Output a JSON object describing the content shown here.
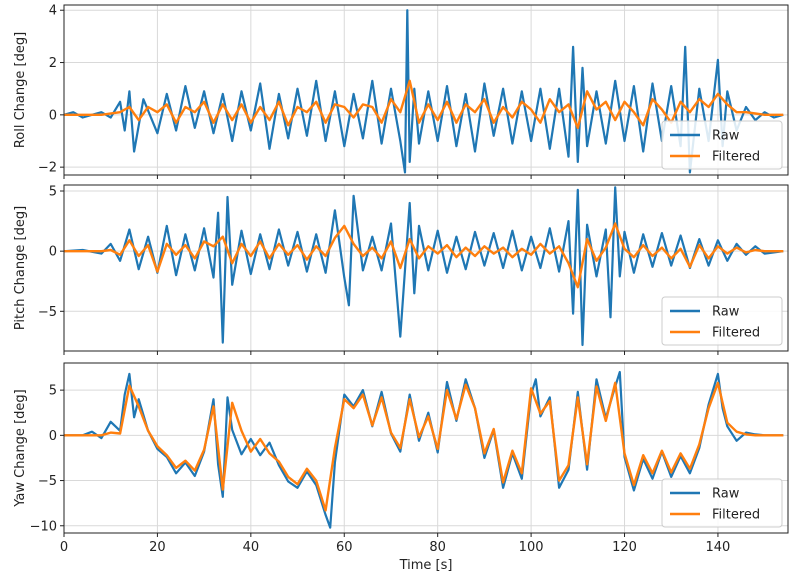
{
  "figure_colors": {
    "raw": "#1f77b4",
    "filtered": "#ff7f0e",
    "grid": "#d9d9d9",
    "frame": "#222222"
  },
  "chart_data": [
    {
      "type": "line",
      "ylabel": "Roll Change [deg]",
      "xlabel": "",
      "xlim": [
        0,
        155
      ],
      "ylim": [
        -2.3,
        4.2
      ],
      "yticks": [
        -2,
        0,
        2,
        4
      ],
      "ytick_labels": [
        "−2",
        "0",
        "2",
        "4"
      ],
      "xticks": [
        0,
        20,
        40,
        60,
        80,
        100,
        120,
        140
      ],
      "grid": true,
      "legend": {
        "position": "bottom-right",
        "entries": [
          "Raw",
          "Filtered"
        ]
      },
      "series": [
        {
          "name": "Raw",
          "color": "#1f77b4",
          "x": [
            0,
            2,
            4,
            6,
            8,
            10,
            12,
            13,
            14,
            15,
            17,
            20,
            22,
            24,
            26,
            28,
            30,
            32,
            34,
            36,
            38,
            40,
            42,
            44,
            46,
            48,
            50,
            52,
            54,
            56,
            58,
            60,
            62,
            64,
            66,
            68,
            70,
            72,
            73,
            73.5,
            74,
            75,
            76,
            78,
            80,
            82,
            84,
            86,
            88,
            90,
            92,
            94,
            96,
            98,
            100,
            102,
            104,
            106,
            108,
            109,
            110,
            111,
            112,
            114,
            116,
            118,
            120,
            122,
            124,
            126,
            128,
            130,
            132,
            133,
            134,
            136,
            138,
            140,
            141,
            142,
            144,
            146,
            148,
            150,
            152,
            154
          ],
          "y": [
            0,
            0.1,
            -0.1,
            0,
            0.1,
            -0.1,
            0.5,
            -0.6,
            0.9,
            -1.4,
            0.6,
            -0.7,
            0.8,
            -0.6,
            1.1,
            -0.5,
            0.9,
            -0.7,
            0.8,
            -1.0,
            0.9,
            -0.6,
            1.2,
            -1.3,
            0.8,
            -0.9,
            1.0,
            -0.8,
            1.3,
            -1.0,
            0.9,
            -1.2,
            0.8,
            -0.9,
            1.3,
            -1.1,
            1.0,
            -1.0,
            -2.2,
            4.0,
            -1.8,
            1.0,
            -1.1,
            0.9,
            -1.0,
            1.1,
            -1.2,
            0.8,
            -1.4,
            1.2,
            -0.8,
            1.0,
            -1.1,
            0.9,
            -1.0,
            1.0,
            -1.3,
            1.0,
            -1.6,
            2.6,
            -1.8,
            1.8,
            -1.2,
            0.9,
            -1.1,
            1.3,
            -1.0,
            1.1,
            -1.4,
            1.2,
            -1.0,
            1.1,
            -1.2,
            2.6,
            -2.2,
            1.0,
            -1.0,
            2.1,
            -1.2,
            0.9,
            -0.6,
            0.3,
            -0.2,
            0.1,
            -0.1,
            0
          ]
        },
        {
          "name": "Filtered",
          "color": "#ff7f0e",
          "x": [
            0,
            4,
            8,
            12,
            14,
            16,
            18,
            20,
            22,
            24,
            26,
            28,
            30,
            32,
            34,
            36,
            38,
            40,
            42,
            44,
            46,
            48,
            50,
            52,
            54,
            56,
            58,
            60,
            62,
            64,
            66,
            68,
            70,
            72,
            74,
            76,
            78,
            80,
            82,
            84,
            86,
            88,
            90,
            92,
            94,
            96,
            98,
            100,
            102,
            104,
            106,
            108,
            110,
            112,
            114,
            116,
            118,
            120,
            122,
            124,
            126,
            128,
            130,
            132,
            134,
            136,
            138,
            140,
            142,
            144,
            146,
            148,
            150,
            154
          ],
          "y": [
            0,
            0,
            0,
            0.1,
            0.3,
            -0.2,
            0.3,
            0.1,
            0.4,
            -0.3,
            0.3,
            0.1,
            0.5,
            -0.3,
            0.4,
            -0.2,
            0.4,
            -0.3,
            0.3,
            -0.2,
            0.5,
            -0.4,
            0.3,
            0.1,
            0.5,
            -0.3,
            0.4,
            0.3,
            -0.1,
            0.4,
            0.3,
            -0.3,
            0.6,
            0.1,
            1.3,
            -0.3,
            0.4,
            -0.2,
            0.5,
            -0.3,
            0.4,
            0.1,
            0.6,
            -0.3,
            0.3,
            -0.1,
            0.5,
            0.2,
            -0.3,
            0.6,
            0.1,
            0.4,
            -0.5,
            0.9,
            0.2,
            0.5,
            -0.2,
            0.5,
            0.1,
            -0.4,
            0.6,
            0.2,
            -0.3,
            0.5,
            0.1,
            0.6,
            0.3,
            0.8,
            0.4,
            0.1,
            0.1,
            0.05,
            0,
            0
          ]
        }
      ]
    },
    {
      "type": "line",
      "ylabel": "Pitch Change [deg]",
      "xlabel": "",
      "xlim": [
        0,
        155
      ],
      "ylim": [
        -8.3,
        5.5
      ],
      "yticks": [
        -5,
        0,
        5
      ],
      "ytick_labels": [
        "−5",
        "0",
        "5"
      ],
      "xticks": [
        0,
        20,
        40,
        60,
        80,
        100,
        120,
        140
      ],
      "grid": true,
      "legend": {
        "position": "bottom-right",
        "entries": [
          "Raw",
          "Filtered"
        ]
      },
      "series": [
        {
          "name": "Raw",
          "color": "#1f77b4",
          "x": [
            0,
            4,
            8,
            10,
            12,
            14,
            16,
            18,
            20,
            22,
            24,
            26,
            28,
            30,
            32,
            33,
            34,
            35,
            36,
            38,
            40,
            42,
            44,
            46,
            48,
            50,
            52,
            54,
            56,
            58,
            60,
            61,
            62,
            64,
            66,
            68,
            70,
            72,
            74,
            75,
            76,
            78,
            80,
            82,
            84,
            86,
            88,
            90,
            92,
            94,
            96,
            98,
            100,
            102,
            104,
            106,
            108,
            109,
            110,
            111,
            112,
            114,
            116,
            117,
            118,
            119,
            120,
            122,
            124,
            126,
            128,
            130,
            132,
            134,
            136,
            138,
            140,
            142,
            144,
            146,
            148,
            150,
            154
          ],
          "y": [
            0,
            0.1,
            -0.2,
            0.6,
            -0.8,
            1.8,
            -1.5,
            1.2,
            -1.8,
            2.1,
            -2.0,
            1.4,
            -1.6,
            1.9,
            -2.2,
            3.2,
            -7.6,
            4.5,
            -2.8,
            1.7,
            -1.9,
            1.4,
            -1.5,
            1.8,
            -1.2,
            1.6,
            -1.7,
            1.4,
            -1.8,
            3.4,
            -2.2,
            -4.5,
            4.6,
            -1.6,
            1.2,
            -1.6,
            2.3,
            -7.1,
            4.0,
            -3.5,
            2.1,
            -1.6,
            1.7,
            -1.8,
            1.2,
            -1.5,
            1.6,
            -1.2,
            1.5,
            -1.4,
            1.7,
            -1.6,
            1.2,
            -1.4,
            1.9,
            -1.7,
            2.5,
            -5.2,
            5.1,
            -7.8,
            2.2,
            -2.1,
            1.8,
            -5.5,
            5.3,
            -2.1,
            1.6,
            -1.8,
            1.4,
            -1.3,
            1.5,
            -1.2,
            1.3,
            -1.4,
            1.0,
            -1.2,
            0.9,
            -0.8,
            0.6,
            -0.3,
            0.4,
            -0.2,
            0
          ]
        },
        {
          "name": "Filtered",
          "color": "#ff7f0e",
          "x": [
            0,
            4,
            8,
            10,
            12,
            14,
            16,
            18,
            20,
            22,
            24,
            26,
            28,
            30,
            32,
            34,
            36,
            38,
            40,
            42,
            44,
            46,
            48,
            50,
            52,
            54,
            56,
            58,
            60,
            62,
            64,
            66,
            68,
            70,
            72,
            74,
            76,
            78,
            80,
            82,
            84,
            86,
            88,
            90,
            92,
            94,
            96,
            98,
            100,
            102,
            104,
            106,
            108,
            110,
            112,
            114,
            116,
            118,
            120,
            122,
            124,
            126,
            128,
            130,
            132,
            134,
            136,
            138,
            140,
            142,
            144,
            146,
            148,
            150,
            154
          ],
          "y": [
            0,
            0,
            0,
            0.1,
            -0.3,
            0.9,
            -0.4,
            0.5,
            -1.7,
            0.6,
            -0.3,
            0.5,
            -0.6,
            0.8,
            0.4,
            1.2,
            -1.0,
            0.6,
            -0.4,
            0.8,
            -0.6,
            0.6,
            -0.3,
            0.5,
            -0.7,
            0.4,
            -0.4,
            1.1,
            2.1,
            0.6,
            -0.4,
            0.3,
            -0.6,
            0.8,
            -1.4,
            1.0,
            -0.6,
            0.4,
            -0.2,
            0.5,
            -0.5,
            0.3,
            -0.4,
            0.4,
            -0.2,
            0.3,
            -0.5,
            0.2,
            -0.3,
            0.6,
            -0.2,
            0.4,
            -1.0,
            -3.0,
            1.0,
            -0.8,
            0.3,
            2.3,
            0.2,
            -0.5,
            0.5,
            -0.4,
            0.3,
            -0.6,
            0.2,
            -1.3,
            0.5,
            -0.6,
            0.4,
            -0.2,
            0.3,
            -0.1,
            0.1,
            0,
            0
          ]
        }
      ]
    },
    {
      "type": "line",
      "ylabel": "Yaw Change [deg]",
      "xlabel": "Time [s]",
      "xlim": [
        0,
        155
      ],
      "ylim": [
        -10.8,
        8.0
      ],
      "yticks": [
        -10,
        -5,
        0,
        5
      ],
      "ytick_labels": [
        "−10",
        "−5",
        "0",
        "5"
      ],
      "xticks": [
        0,
        20,
        40,
        60,
        80,
        100,
        120,
        140
      ],
      "xtick_labels": [
        "0",
        "20",
        "40",
        "60",
        "80",
        "100",
        "120",
        "140"
      ],
      "grid": true,
      "legend": {
        "position": "bottom-right",
        "entries": [
          "Raw",
          "Filtered"
        ]
      },
      "series": [
        {
          "name": "Raw",
          "color": "#1f77b4",
          "x": [
            0,
            4,
            6,
            8,
            10,
            12,
            13,
            14,
            15,
            16,
            18,
            20,
            22,
            24,
            26,
            28,
            30,
            32,
            33,
            34,
            35,
            36,
            38,
            40,
            42,
            44,
            46,
            48,
            50,
            52,
            54,
            56,
            57,
            58,
            60,
            62,
            64,
            66,
            68,
            70,
            72,
            74,
            76,
            78,
            80,
            82,
            84,
            86,
            88,
            90,
            92,
            94,
            96,
            98,
            100,
            101,
            102,
            104,
            106,
            108,
            110,
            112,
            114,
            116,
            118,
            119,
            120,
            122,
            124,
            126,
            128,
            130,
            132,
            134,
            136,
            138,
            140,
            141,
            142,
            144,
            146,
            148,
            150,
            154
          ],
          "y": [
            0,
            0,
            0.4,
            -0.3,
            1.5,
            0.5,
            4.5,
            6.8,
            2.0,
            4.0,
            0.5,
            -1.5,
            -2.4,
            -4.2,
            -3.0,
            -4.5,
            -1.8,
            4.0,
            -3.2,
            -6.8,
            4.2,
            0.6,
            -2.1,
            -0.4,
            -2.2,
            -0.8,
            -3.3,
            -5.1,
            -5.8,
            -4.0,
            -5.5,
            -8.8,
            -10.2,
            -3.0,
            4.5,
            3.2,
            5.0,
            1.0,
            4.8,
            0.2,
            -1.8,
            4.5,
            -0.6,
            2.5,
            -1.9,
            5.9,
            1.6,
            6.2,
            3.0,
            -2.5,
            0.6,
            -5.8,
            -2.0,
            -4.8,
            4.5,
            6.2,
            2.1,
            4.2,
            -5.8,
            -3.8,
            4.8,
            -3.8,
            6.2,
            1.9,
            5.4,
            7.0,
            -2.4,
            -6.1,
            -2.6,
            -4.8,
            -1.8,
            -4.6,
            -2.3,
            -4.2,
            -1.4,
            3.4,
            6.8,
            3.0,
            1.0,
            -0.6,
            0.3,
            0.1,
            0,
            0
          ]
        },
        {
          "name": "Filtered",
          "color": "#ff7f0e",
          "x": [
            0,
            4,
            8,
            10,
            12,
            14,
            16,
            18,
            20,
            22,
            24,
            26,
            28,
            30,
            32,
            34,
            36,
            38,
            40,
            42,
            44,
            46,
            48,
            50,
            52,
            54,
            56,
            58,
            60,
            62,
            64,
            66,
            68,
            70,
            72,
            74,
            76,
            78,
            80,
            82,
            84,
            86,
            88,
            90,
            92,
            94,
            96,
            98,
            100,
            102,
            104,
            106,
            108,
            110,
            112,
            114,
            116,
            118,
            120,
            122,
            124,
            126,
            128,
            130,
            132,
            134,
            136,
            138,
            140,
            142,
            144,
            146,
            148,
            150,
            154
          ],
          "y": [
            0,
            0,
            0,
            0.3,
            0.2,
            5.5,
            3.2,
            0.5,
            -1.2,
            -2.2,
            -3.6,
            -2.8,
            -3.9,
            -1.6,
            3.2,
            -6.0,
            3.6,
            0.5,
            -1.8,
            -0.4,
            -2.0,
            -2.9,
            -4.6,
            -5.4,
            -3.7,
            -5.0,
            -8.3,
            -1.4,
            4.0,
            3.0,
            4.5,
            1.1,
            4.2,
            0.3,
            -1.4,
            4.0,
            -0.2,
            2.1,
            -1.5,
            5.0,
            1.8,
            5.6,
            3.0,
            -2.0,
            0.7,
            -5.2,
            -1.7,
            -4.2,
            5.2,
            2.4,
            3.8,
            -5.0,
            -3.3,
            4.2,
            -3.2,
            5.4,
            1.6,
            5.8,
            -2.0,
            -5.5,
            -2.2,
            -4.2,
            -1.7,
            -4.1,
            -2.0,
            -3.7,
            -1.0,
            3.0,
            5.8,
            1.4,
            0.4,
            0.1,
            0,
            0,
            0
          ]
        }
      ]
    }
  ]
}
